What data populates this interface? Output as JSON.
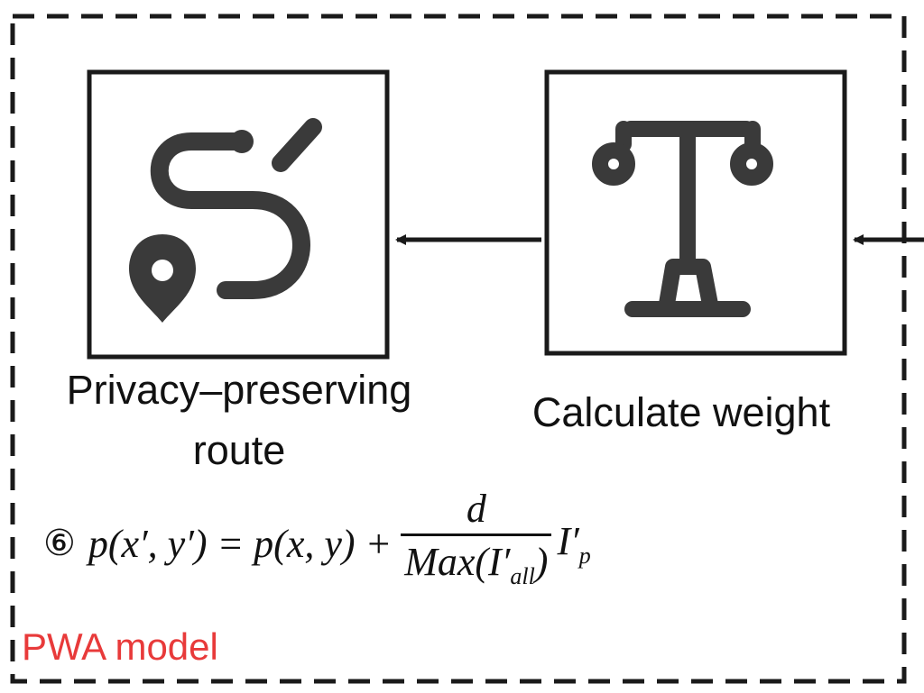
{
  "diagram": {
    "model_label": "PWA model",
    "model_label_color": "#e83a3a",
    "line_color": "#1a1a1a",
    "icon_color": "#3a3a3a",
    "nodes": [
      {
        "id": "route",
        "label_line1": "Privacy–preserving",
        "label_line2": "route",
        "icon": "route-map-pin-icon"
      },
      {
        "id": "weight",
        "label": "Calculate weight",
        "icon": "balance-scale-icon"
      }
    ],
    "equation": {
      "step": "⑥",
      "lhs": "p(x′, y′) = p(x, y) +",
      "numerator": "d",
      "denominator_main": "Max(I′",
      "denominator_sub": "all",
      "denominator_end": ")",
      "tail": "I′",
      "tail_sub": "p"
    }
  }
}
